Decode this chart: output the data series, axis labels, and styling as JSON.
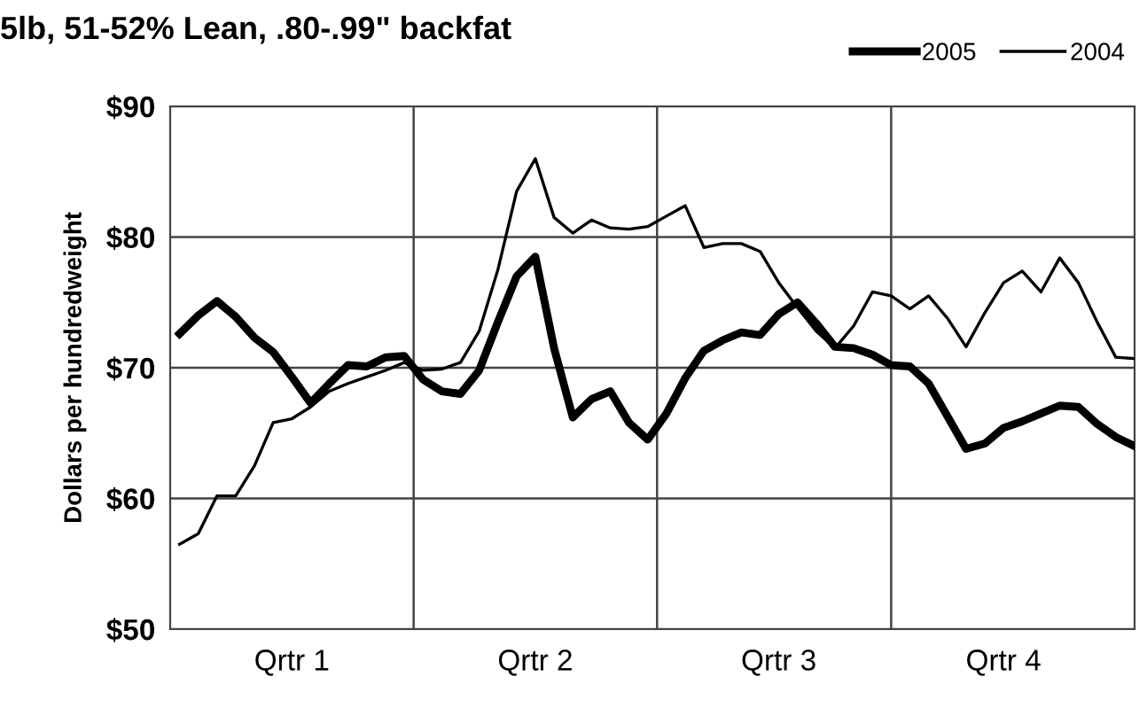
{
  "chart_data": {
    "type": "line",
    "title": "5lb, 51-52% Lean, .80-.99\" backfat",
    "ylabel": "Dollars per hundredweight",
    "categories": [
      null,
      null,
      null,
      null,
      null,
      null,
      "Qrtr 1",
      null,
      null,
      null,
      null,
      null,
      null,
      null,
      null,
      null,
      null,
      null,
      null,
      "Qrtr 2",
      null,
      null,
      null,
      null,
      null,
      null,
      null,
      null,
      null,
      null,
      null,
      null,
      "Qrtr 3",
      null,
      null,
      null,
      null,
      null,
      null,
      null,
      null,
      null,
      null,
      null,
      "Qrtr 4",
      null,
      null,
      null,
      null,
      null,
      null,
      null
    ],
    "ylim": [
      50,
      90
    ],
    "yticks": [
      {
        "value": 50,
        "label": "$50"
      },
      {
        "value": 60,
        "label": "$60"
      },
      {
        "value": 70,
        "label": "$70"
      },
      {
        "value": 80,
        "label": "$80"
      },
      {
        "value": 90,
        "label": "$90"
      }
    ],
    "grid": true,
    "legend": "top right",
    "line_style": "solid",
    "series": [
      {
        "name": "2005",
        "color": "#000000",
        "values": [
          72.6,
          74.0,
          75.1,
          73.9,
          72.3,
          71.2,
          69.3,
          67.3,
          68.8,
          70.2,
          70.1,
          70.8,
          70.9,
          69.1,
          68.2,
          68.0,
          69.8,
          73.5,
          77.0,
          78.5,
          71.5,
          66.2,
          67.6,
          68.2,
          65.8,
          64.5,
          66.5,
          69.2,
          71.3,
          72.1,
          72.7,
          72.5,
          74.1,
          75.0,
          73.4,
          71.6,
          71.5,
          71.0,
          70.2,
          70.1,
          68.8,
          66.3,
          63.8,
          64.2,
          65.4,
          65.9,
          66.5,
          67.1,
          67.0,
          65.7,
          64.7,
          64.0
        ]
      },
      {
        "name": "2004",
        "color": "#000000",
        "values": [
          56.5,
          57.3,
          60.2,
          60.2,
          62.5,
          65.8,
          66.1,
          67.0,
          68.2,
          68.8,
          69.3,
          69.8,
          70.4,
          69.8,
          69.9,
          70.4,
          72.8,
          77.5,
          83.5,
          86.0,
          81.5,
          80.3,
          81.3,
          80.7,
          80.6,
          80.8,
          81.6,
          82.4,
          79.2,
          79.5,
          79.5,
          78.9,
          76.5,
          74.6,
          72.8,
          71.5,
          73.2,
          75.8,
          75.5,
          74.5,
          75.5,
          73.8,
          71.6,
          74.2,
          76.5,
          77.4,
          75.8,
          78.4,
          76.5,
          73.5,
          70.8,
          70.7
        ]
      }
    ]
  }
}
